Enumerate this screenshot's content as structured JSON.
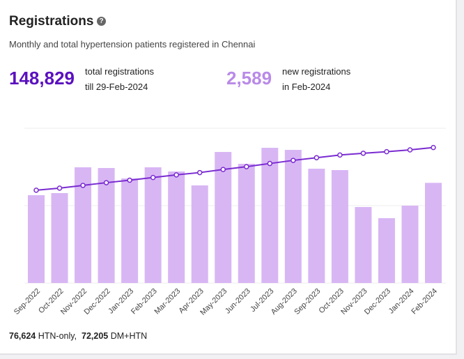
{
  "header": {
    "title": "Registrations",
    "help": "?",
    "subtitle": "Monthly and total hypertension patients registered in Chennai"
  },
  "summary": {
    "total": {
      "value": "148,829",
      "label1": "total registrations",
      "label2": "till 29-Feb-2024"
    },
    "new": {
      "value": "2,589",
      "label1": "new registrations",
      "label2": "in Feb-2024"
    }
  },
  "chart_data": {
    "type": "bar",
    "categories": [
      "Sep-2022",
      "Oct-2022",
      "Nov-2022",
      "Dec-2022",
      "Jan-2023",
      "Feb-2023",
      "Mar-2023",
      "Apr-2023",
      "May-2023",
      "Jun-2023",
      "Jul-2023",
      "Aug-2023",
      "Sep-2023",
      "Oct-2023",
      "Nov-2023",
      "Dec-2023",
      "Jan-2024",
      "Feb-2024"
    ],
    "series": [
      {
        "name": "new registrations",
        "type": "bar",
        "color": "#d8b6f4",
        "values": [
          2270,
          2324,
          2991,
          2973,
          2703,
          2991,
          2883,
          2523,
          3387,
          3081,
          3495,
          3441,
          2955,
          2919,
          1964,
          1676,
          2000,
          2589
        ]
      },
      {
        "name": "total registrations",
        "type": "line",
        "axis": "y2",
        "color": "#7a2bd1",
        "values": [
          101934,
          104258,
          107249,
          110222,
          112925,
          115916,
          118799,
          121322,
          124709,
          127790,
          131285,
          134726,
          137681,
          140600,
          142564,
          144240,
          146240,
          148829
        ]
      }
    ],
    "ylim": [
      0,
      4000
    ],
    "yticks": [
      0,
      2000,
      4000
    ],
    "y2lim": [
      0,
      170000
    ],
    "grid": true
  },
  "footer": {
    "htn_value": "76,624",
    "htn_label": "HTN-only,",
    "dm_value": "72,205",
    "dm_label": "DM+HTN"
  }
}
